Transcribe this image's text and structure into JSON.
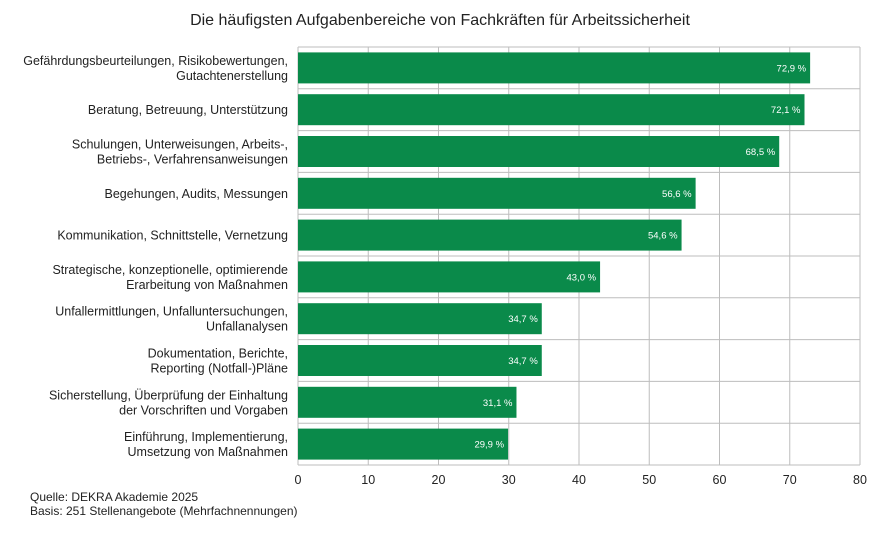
{
  "chart_data": {
    "type": "bar",
    "orientation": "horizontal",
    "title": "Die häufigsten Aufgabenbereiche von Fachkräften für Arbeitssicherheit",
    "categories": [
      [
        "Gefährdungsbeurteilungen, Risikobewertungen,",
        "Gutachtenerstellung"
      ],
      [
        "Beratung, Betreuung, Unterstützung"
      ],
      [
        "Schulungen, Unterweisungen, Arbeits-,",
        "Betriebs-, Verfahrensanweisungen"
      ],
      [
        "Begehungen, Audits, Messungen"
      ],
      [
        "Kommunikation, Schnittstelle, Vernetzung"
      ],
      [
        "Strategische, konzeptionelle, optimierende",
        "Erarbeitung von Maßnahmen"
      ],
      [
        "Unfallermittlungen, Unfalluntersuchungen,",
        "Unfallanalysen"
      ],
      [
        "Dokumentation, Berichte,",
        "Reporting (Notfall-)Pläne"
      ],
      [
        "Sicherstellung, Überprüfung der Einhaltung",
        "der Vorschriften und Vorgaben"
      ],
      [
        "Einführung, Implementierung,",
        "Umsetzung von Maßnahmen"
      ]
    ],
    "values": [
      72.9,
      72.1,
      68.5,
      56.6,
      54.6,
      43.0,
      34.7,
      34.7,
      31.1,
      29.9
    ],
    "value_labels": [
      "72,9 %",
      "72,1 %",
      "68,5 %",
      "56,6 %",
      "54,6 %",
      "43,0 %",
      "34,7 %",
      "34,7 %",
      "31,1 %",
      "29,9 %"
    ],
    "xlim": [
      0,
      80
    ],
    "xticks": [
      0,
      10,
      20,
      30,
      40,
      50,
      60,
      70,
      80
    ],
    "grid": true,
    "bar_color": "#0a8a4a",
    "grid_color": "#bdbdbd"
  },
  "footer": {
    "source": "Quelle: DEKRA Akademie 2025",
    "basis": "Basis: 251 Stellenangebote (Mehrfachnennungen)"
  }
}
